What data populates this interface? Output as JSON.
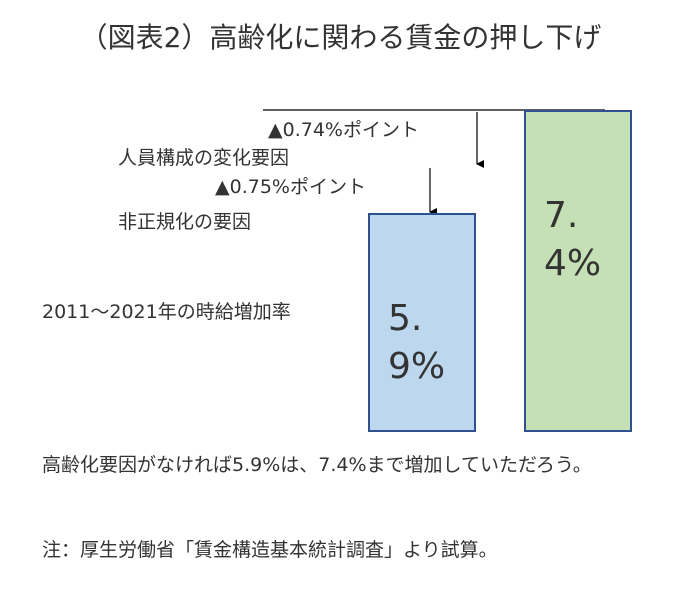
{
  "chart_data": {
    "type": "bar",
    "title": "（図表2）高齢化に関わる賃金の押し下げ",
    "categories": [
      null,
      null
    ],
    "values": [
      5.9,
      7.4
    ],
    "value_labels": [
      "5.9%",
      "7.4%"
    ],
    "colors": [
      "#bdd7ee",
      "#c5e0b4"
    ],
    "edge_color": "#2f528f",
    "ylim": [
      2.7,
      7.4
    ],
    "annotations": [
      "▲0.74%ポイント",
      "人員構成の変化要因",
      "▲0.75%ポイント",
      "非正規化の要因",
      "2011～2021年の時給増加率"
    ],
    "caption": "高齢化要因がなければ5.9%は、7.4%まで増加していただろう。",
    "note": "注：厚生労働省「賃金構造基本統計調査」より試算。"
  }
}
